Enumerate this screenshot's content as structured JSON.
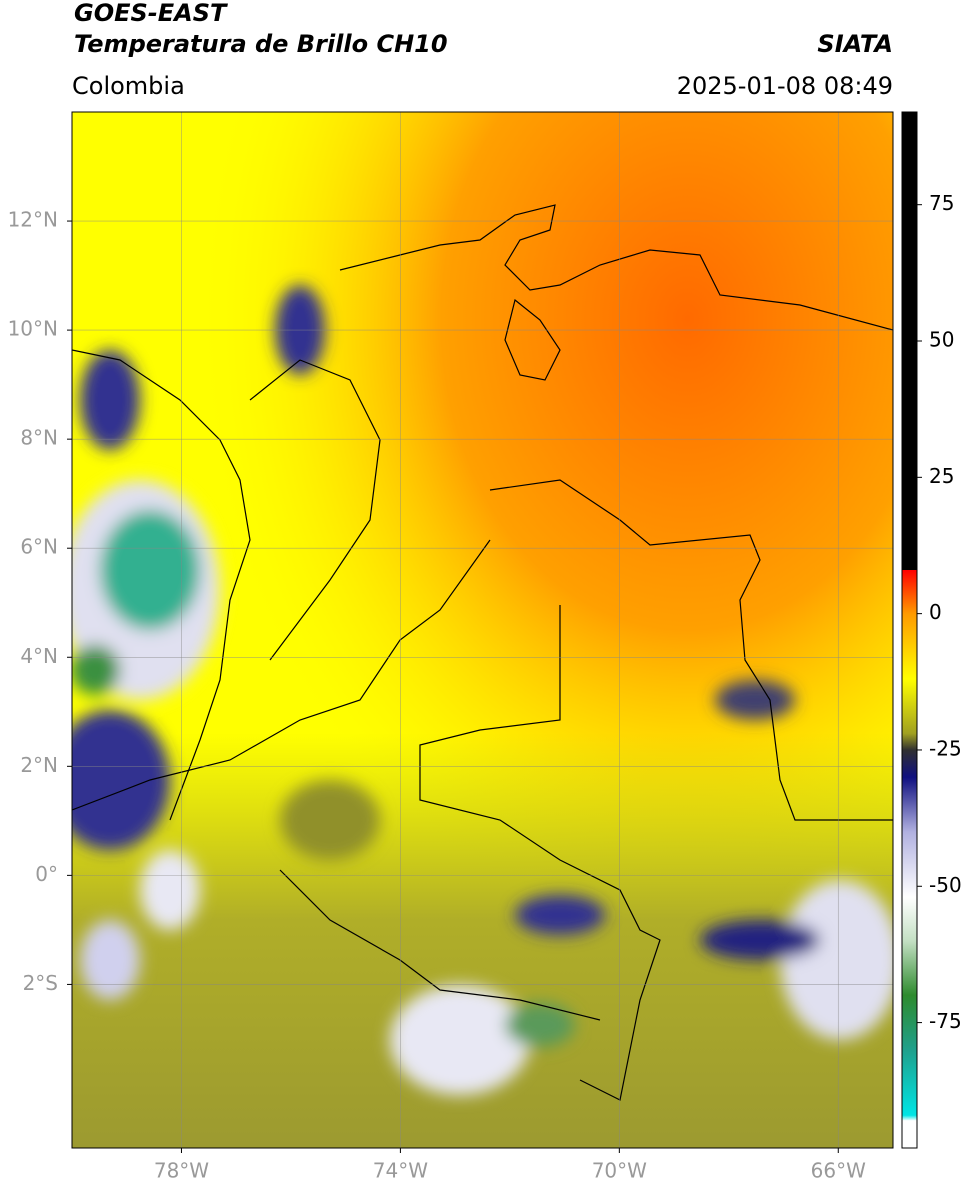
{
  "header": {
    "title_line1": "GOES-EAST",
    "title_line2": "Temperatura de Brillo CH10",
    "region": "Colombia",
    "source": "SIATA",
    "timestamp": "2025-01-08 08:49"
  },
  "map": {
    "lon_range": [
      -80,
      -65
    ],
    "lat_range": [
      -5,
      14
    ],
    "grid": true,
    "lon_ticks": [
      {
        "value": -78,
        "label": "78°W"
      },
      {
        "value": -74,
        "label": "74°W"
      },
      {
        "value": -70,
        "label": "70°W"
      },
      {
        "value": -66,
        "label": "66°W"
      }
    ],
    "lat_ticks": [
      {
        "value": 12,
        "label": "12°N"
      },
      {
        "value": 10,
        "label": "10°N"
      },
      {
        "value": 8,
        "label": "8°N"
      },
      {
        "value": 6,
        "label": "6°N"
      },
      {
        "value": 4,
        "label": "4°N"
      },
      {
        "value": 2,
        "label": "2°N"
      },
      {
        "value": 0,
        "label": "0°"
      },
      {
        "value": -2,
        "label": "2°S"
      }
    ]
  },
  "colorbar": {
    "range": [
      -98,
      92
    ],
    "ticks": [
      75,
      50,
      25,
      0,
      -25,
      -50,
      -75
    ],
    "stops": [
      {
        "value": -98,
        "color": "#ffffff"
      },
      {
        "value": -93,
        "color": "#ffffff"
      },
      {
        "value": -92,
        "color": "#00e5e5"
      },
      {
        "value": -80,
        "color": "#1fa08c"
      },
      {
        "value": -70,
        "color": "#2e8b2e"
      },
      {
        "value": -60,
        "color": "#c4e0c4"
      },
      {
        "value": -52,
        "color": "#ffffff"
      },
      {
        "value": -40,
        "color": "#b0b0e0"
      },
      {
        "value": -30,
        "color": "#101080"
      },
      {
        "value": -25,
        "color": "#303030"
      },
      {
        "value": -22,
        "color": "#a0a020"
      },
      {
        "value": -12,
        "color": "#ffff00"
      },
      {
        "value": 0,
        "color": "#ff9a00"
      },
      {
        "value": 8,
        "color": "#ff0000"
      },
      {
        "value": 8.01,
        "color": "#000000"
      },
      {
        "value": 92,
        "color": "#000000"
      }
    ]
  }
}
